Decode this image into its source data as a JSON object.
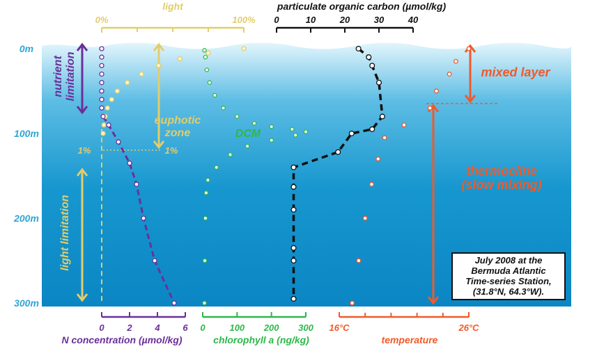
{
  "colors": {
    "light": "#e2cd6b",
    "nitrate": "#6b2f9a",
    "chlorophyll": "#2db84a",
    "carbon": "#111111",
    "temperature": "#f05a2a",
    "depth_label": "#2fa6d6",
    "water_top": "#d9f1fb",
    "water_mid": "#4fb6e0",
    "water_deep": "#0b86c4"
  },
  "depth_axis": {
    "ticks": [
      {
        "label": "0m",
        "depth": 0
      },
      {
        "label": "100m",
        "depth": 100
      },
      {
        "label": "200m",
        "depth": 200
      },
      {
        "label": "300m",
        "depth": 300
      }
    ],
    "range": [
      0,
      300
    ]
  },
  "axes": {
    "light": {
      "title": "light",
      "ticks": [
        "0%",
        "100%"
      ],
      "range": [
        0,
        100
      ]
    },
    "carbon": {
      "title": "particulate organic carbon (µmol/kg)",
      "ticks": [
        "0",
        "10",
        "20",
        "30",
        "40"
      ],
      "range": [
        0,
        40
      ]
    },
    "nitrate": {
      "title": "N concentration (µmol/kg)",
      "ticks": [
        "0",
        "2",
        "4",
        "6"
      ],
      "range": [
        0,
        6
      ]
    },
    "chlorophyll": {
      "title": "chlorophyll a (ng/kg)",
      "ticks": [
        "0",
        "100",
        "200",
        "300"
      ],
      "range": [
        0,
        300
      ]
    },
    "temperature": {
      "title": "temperature",
      "ticks": [
        "16°C",
        "26°C"
      ],
      "range": [
        16,
        26
      ]
    }
  },
  "annotations": {
    "nutrient_limitation": [
      "nutrient",
      "limitation"
    ],
    "euphotic_zone": [
      "euphotic",
      "zone"
    ],
    "light_1pct_left": "1%",
    "light_1pct_right": "1%",
    "dcm": "DCM",
    "light_limitation": "light limitation",
    "mixed_layer": "mixed layer",
    "thermocline": [
      "thermocline",
      "(slow mixing)"
    ]
  },
  "info_box": {
    "lines": [
      "July 2008 at the",
      "Bermuda Atlantic",
      "Time-series Station,",
      "(31.8°N, 64.3°W)."
    ]
  },
  "chart_data": {
    "type": "scatter",
    "y_axis": "depth (m)",
    "series": [
      {
        "key": "nitrate",
        "unit": "µmol/kg",
        "points": [
          [
            0,
            0
          ],
          [
            0,
            10
          ],
          [
            0,
            20
          ],
          [
            0,
            30
          ],
          [
            0,
            40
          ],
          [
            0,
            50
          ],
          [
            0,
            60
          ],
          [
            0,
            70
          ],
          [
            0.1,
            80
          ],
          [
            0.5,
            90
          ],
          [
            1.2,
            110
          ],
          [
            2.0,
            135
          ],
          [
            2.5,
            160
          ],
          [
            3.0,
            200
          ],
          [
            3.8,
            250
          ],
          [
            5.2,
            300
          ]
        ]
      },
      {
        "key": "light",
        "unit": "%",
        "points": [
          [
            100,
            0
          ],
          [
            75,
            5
          ],
          [
            55,
            12
          ],
          [
            40,
            20
          ],
          [
            28,
            30
          ],
          [
            18,
            40
          ],
          [
            11,
            50
          ],
          [
            7,
            60
          ],
          [
            4,
            70
          ],
          [
            2.5,
            80
          ],
          [
            1.5,
            90
          ],
          [
            1,
            100
          ]
        ]
      },
      {
        "key": "chlorophyll",
        "unit": "ng/kg",
        "points": [
          [
            5,
            2
          ],
          [
            8,
            10
          ],
          [
            12,
            25
          ],
          [
            20,
            40
          ],
          [
            35,
            55
          ],
          [
            60,
            70
          ],
          [
            100,
            80
          ],
          [
            150,
            88
          ],
          [
            200,
            92
          ],
          [
            260,
            95
          ],
          [
            300,
            98
          ],
          [
            270,
            102
          ],
          [
            200,
            108
          ],
          [
            130,
            115
          ],
          [
            80,
            125
          ],
          [
            40,
            140
          ],
          [
            15,
            155
          ],
          [
            10,
            170
          ],
          [
            8,
            200
          ],
          [
            6,
            250
          ],
          [
            5,
            300
          ]
        ]
      },
      {
        "key": "carbon",
        "unit": "µmol/kg",
        "points": [
          [
            24,
            0
          ],
          [
            27,
            10
          ],
          [
            28,
            20
          ],
          [
            30,
            40
          ],
          [
            31,
            80
          ],
          [
            28,
            95
          ],
          [
            22,
            100
          ],
          [
            18,
            122
          ],
          [
            5,
            140
          ],
          [
            5,
            163
          ],
          [
            5,
            190
          ],
          [
            5,
            235
          ],
          [
            5,
            250
          ],
          [
            5,
            295
          ]
        ]
      },
      {
        "key": "temperature",
        "unit": "°C",
        "points": [
          [
            26,
            0
          ],
          [
            25,
            15
          ],
          [
            24.5,
            30
          ],
          [
            23.5,
            50
          ],
          [
            23,
            70
          ],
          [
            21,
            90
          ],
          [
            19.5,
            105
          ],
          [
            19,
            130
          ],
          [
            18.5,
            160
          ],
          [
            18,
            200
          ],
          [
            17.5,
            250
          ],
          [
            17,
            300
          ]
        ]
      }
    ]
  }
}
